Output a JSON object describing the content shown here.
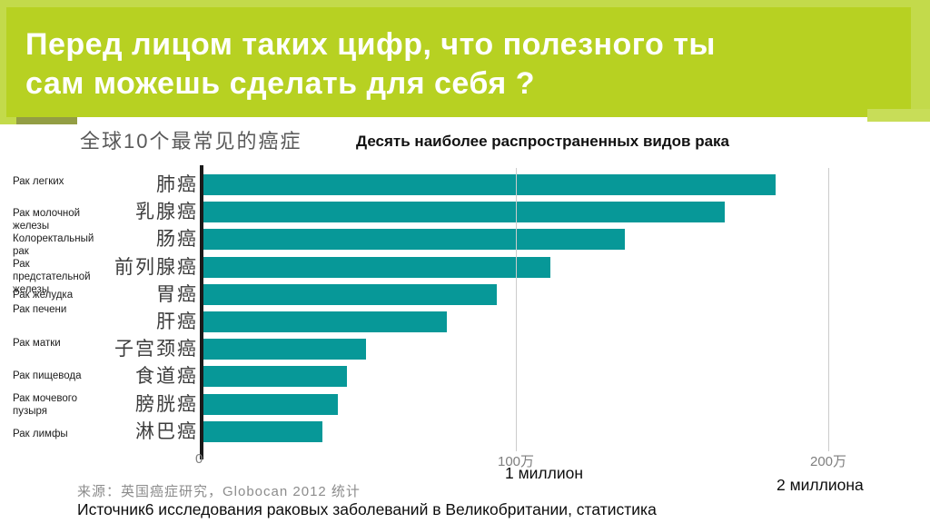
{
  "header": {
    "title": "Перед лицом таких цифр, что полезного ты сам можешь сделать для себя ?",
    "title_line1": "Перед лицом таких цифр, что полезного ты",
    "title_line2": "сам можешь сделать для себя ?"
  },
  "colors": {
    "header_green": "#b7d122",
    "header_light_green": "#c3da4b",
    "bar_teal": "#079898",
    "axis_black": "#1a1a1a",
    "gridline_gray": "#cccccc"
  },
  "chart_data": {
    "type": "bar",
    "orientation": "horizontal",
    "title_cn": "全球10个最常见的癌症",
    "title_ru": "Десять наиболее распространенных видов рака",
    "categories_cn": [
      "肺癌",
      "乳腺癌",
      "肠癌",
      "前列腺癌",
      "胃癌",
      "肝癌",
      "子宫颈癌",
      "食道癌",
      "膀胱癌",
      "淋巴癌"
    ],
    "categories_ru": [
      "Рак легких",
      "Рак молочной железы",
      "Колоректальный рак",
      "Рак предстательной железы",
      "Рак желудка",
      "Рак печени",
      "Рак матки",
      "Рак пищевода",
      "Рак мочевого пузыря",
      "Рак лимфы"
    ],
    "values_10k_cases": [
      183,
      167,
      135,
      111,
      94,
      78,
      52,
      46,
      43,
      38
    ],
    "unit": "万 (10 000 cases)",
    "xlim_10k": [
      0,
      200
    ],
    "x_ticks": [
      "0",
      "100万",
      "200万"
    ],
    "x_ticks_ru": [
      "1 миллион",
      "2 миллиона"
    ],
    "grid": "vertical lines at 100万 and 200万",
    "legend": "none",
    "source_cn": "来源：英国癌症研究，Globocan 2012 统计",
    "source_ru": "Источник6 исследования раковых заболеваний в Великобритании, статистика"
  }
}
